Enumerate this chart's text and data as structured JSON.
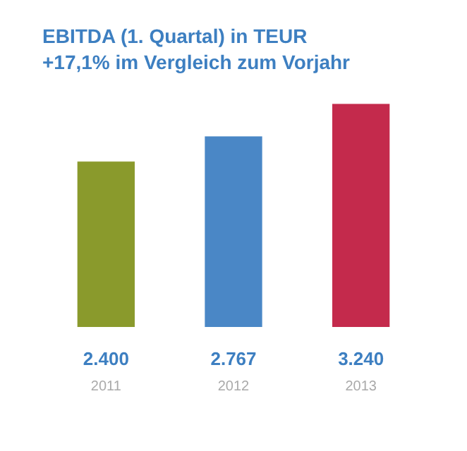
{
  "chart_data": {
    "type": "bar",
    "title": "EBITDA (1. Quartal) in TEUR",
    "subtitle": "+17,1% im Vergleich zum Vorjahr",
    "categories": [
      "2011",
      "2012",
      "2013"
    ],
    "values": [
      2400,
      2767,
      3240
    ],
    "colors": [
      "#8a9a2c",
      "#4a87c6",
      "#c42a4c"
    ],
    "value_labels": [
      "2.400",
      "2.767",
      "3.240"
    ],
    "ylim": [
      0,
      3240
    ],
    "tick_labels": "x",
    "grid": false,
    "legend": false
  }
}
